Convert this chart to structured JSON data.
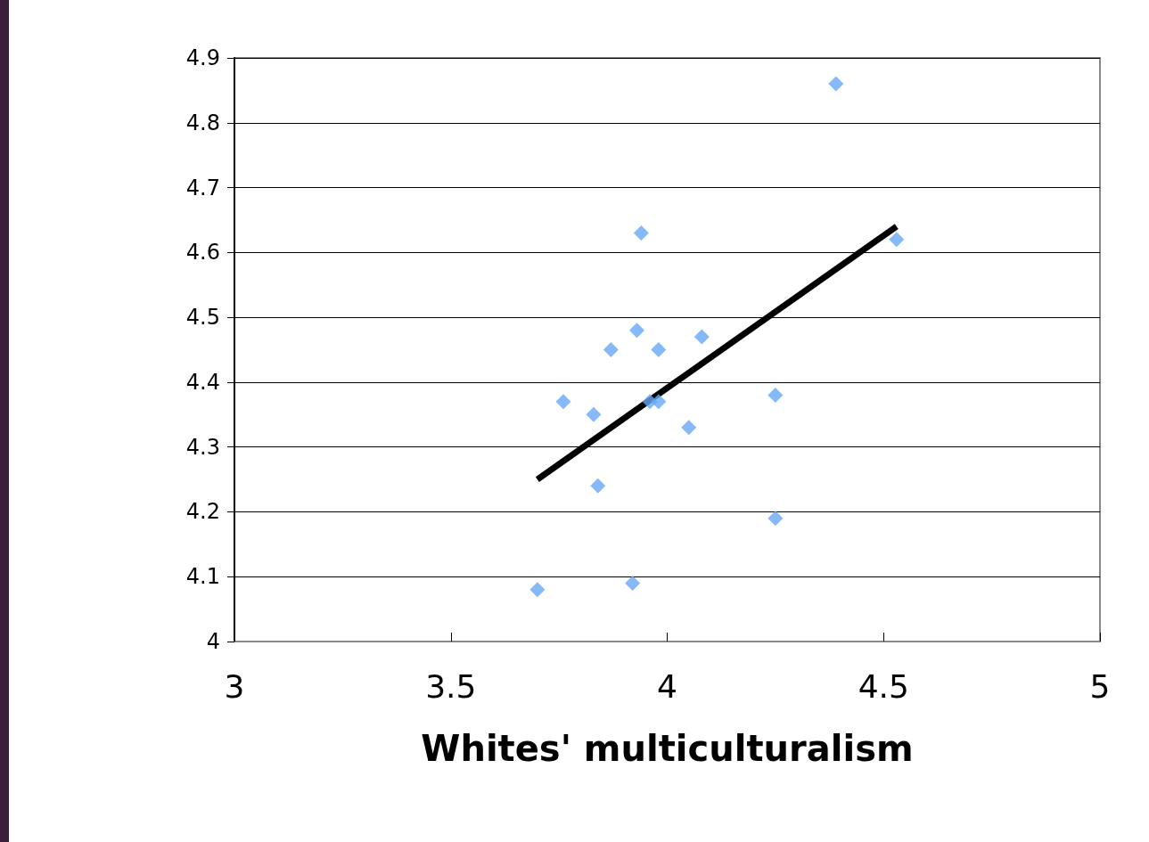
{
  "chart_data": {
    "type": "scatter",
    "xlabel": "Whites' multiculturalism",
    "xlim": [
      3,
      5
    ],
    "xticks": [
      3,
      3.5,
      4,
      4.5,
      5
    ],
    "ylim": [
      4,
      4.9
    ],
    "yticks": [
      4,
      4.1,
      4.2,
      4.3,
      4.4,
      4.5,
      4.6,
      4.7,
      4.8,
      4.9
    ],
    "grid": "y",
    "marker": "diamond",
    "series": [
      {
        "color": "#66a8f5",
        "x": [
          3.7,
          3.76,
          3.83,
          3.84,
          3.87,
          3.92,
          3.93,
          3.94,
          3.96,
          3.98,
          3.98,
          4.05,
          4.08,
          4.25,
          4.25,
          4.39,
          4.53
        ],
        "values": [
          4.08,
          4.37,
          4.35,
          4.24,
          4.45,
          4.09,
          4.48,
          4.63,
          4.37,
          4.37,
          4.45,
          4.33,
          4.47,
          4.38,
          4.19,
          4.86,
          4.62
        ]
      },
      {
        "type": "line",
        "color": "#000000",
        "marker": "none",
        "line_style": "solid",
        "x": [
          3.7,
          4.53
        ],
        "values": [
          4.25,
          4.64
        ]
      }
    ]
  }
}
